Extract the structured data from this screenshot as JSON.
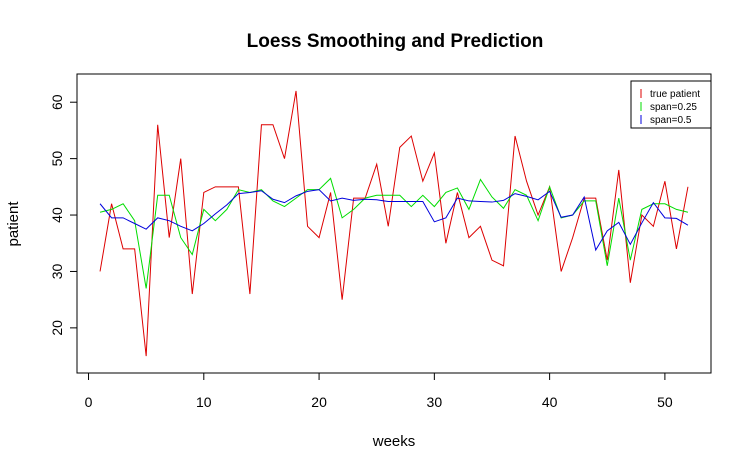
{
  "chart_data": {
    "type": "line",
    "title": "Loess Smoothing and Prediction",
    "xlabel": "weeks",
    "ylabel": "patient",
    "xlim": [
      -1,
      54
    ],
    "ylim": [
      12,
      65
    ],
    "xticks": [
      0,
      10,
      20,
      30,
      40,
      50
    ],
    "yticks": [
      20,
      30,
      40,
      50,
      60
    ],
    "legend_position": "top-right",
    "x": [
      1,
      2,
      3,
      4,
      5,
      6,
      7,
      8,
      9,
      10,
      11,
      12,
      13,
      14,
      15,
      16,
      17,
      18,
      19,
      20,
      21,
      22,
      23,
      24,
      25,
      26,
      27,
      28,
      29,
      30,
      31,
      32,
      33,
      34,
      35,
      36,
      37,
      38,
      39,
      40,
      41,
      42,
      43,
      44,
      45,
      46,
      47,
      48,
      49,
      50,
      51,
      52
    ],
    "series": [
      {
        "name": "true patient",
        "color": "#dd0000",
        "values": [
          30,
          42,
          34,
          34,
          15,
          56,
          36,
          50,
          26,
          44,
          45,
          45,
          45,
          26,
          56,
          56,
          50,
          62,
          38,
          36,
          44,
          25,
          43,
          43,
          49,
          38,
          52,
          54,
          46,
          51,
          35,
          44,
          36,
          38,
          32,
          31,
          54,
          46,
          40,
          45,
          30,
          36,
          43,
          43,
          32,
          48,
          28,
          40,
          38,
          46,
          34,
          45
        ]
      },
      {
        "name": "span=0.25",
        "color": "#00dd00",
        "values": [
          40.5,
          41,
          42,
          39,
          27,
          43.5,
          43.5,
          36,
          33,
          41,
          39,
          41,
          44.5,
          44,
          44.5,
          42.5,
          41.5,
          43,
          44.5,
          44.5,
          46.5,
          39.5,
          41,
          43,
          43.5,
          43.5,
          43.5,
          41.5,
          43.5,
          41.5,
          44,
          44.8,
          41,
          46.3,
          43.2,
          41.2,
          44.5,
          43.5,
          39,
          45,
          39.5,
          40,
          42.5,
          42.5,
          31,
          43,
          32,
          41,
          42,
          42,
          41,
          40.5
        ]
      },
      {
        "name": "span=0.5",
        "color": "#0000dd",
        "values": [
          42,
          39.5,
          39.5,
          38.5,
          37.5,
          39.5,
          39,
          38,
          37.2,
          38.5,
          40.2,
          41.8,
          43.8,
          44,
          44.3,
          42.8,
          42.2,
          43.4,
          44.2,
          44.5,
          42.5,
          43,
          42.6,
          42.8,
          42.7,
          42.4,
          42.4,
          42.4,
          42.4,
          38.8,
          39.5,
          43,
          42.5,
          42.4,
          42.3,
          42.6,
          43.8,
          43.3,
          42.7,
          44.2,
          39.6,
          40,
          43.2,
          33.8,
          37.2,
          38.7,
          34.8,
          38.6,
          42.2,
          39.5,
          39.4,
          38.2
        ]
      }
    ]
  }
}
